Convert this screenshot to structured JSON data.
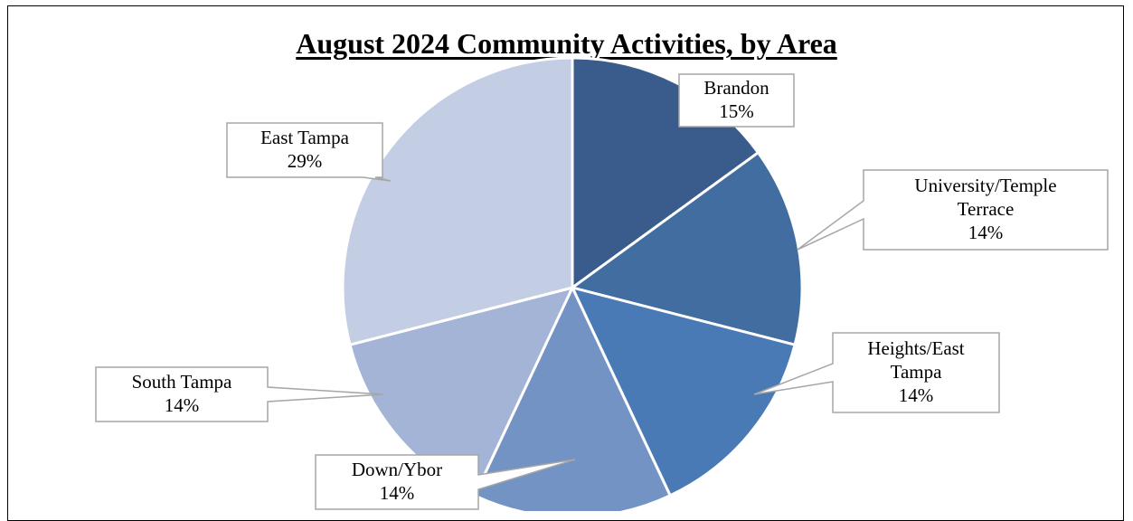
{
  "chart_data": {
    "type": "pie",
    "title": "August 2024 Community Activities, by Area",
    "categories": [
      "Brandon",
      "University/Temple Terrace",
      "Heights/East Tampa",
      "Down/Ybor",
      "South Tampa",
      "East Tampa"
    ],
    "values": [
      15,
      14,
      14,
      14,
      14,
      29
    ],
    "unit": "%",
    "label_lines": [
      [
        "Brandon",
        "15%"
      ],
      [
        "University/Temple",
        "Terrace",
        "14%"
      ],
      [
        "Heights/East",
        "Tampa",
        "14%"
      ],
      [
        "Down/Ybor",
        "14%"
      ],
      [
        "South Tampa",
        "14%"
      ],
      [
        "East Tampa",
        "29%"
      ]
    ],
    "colors": [
      "#3A5C8C",
      "#416DA1",
      "#4A7AB5",
      "#7493C5",
      "#A3B4D6",
      "#C3CDE3"
    ],
    "legend": "none",
    "start_angle_deg": 0,
    "direction": "clockwise"
  }
}
